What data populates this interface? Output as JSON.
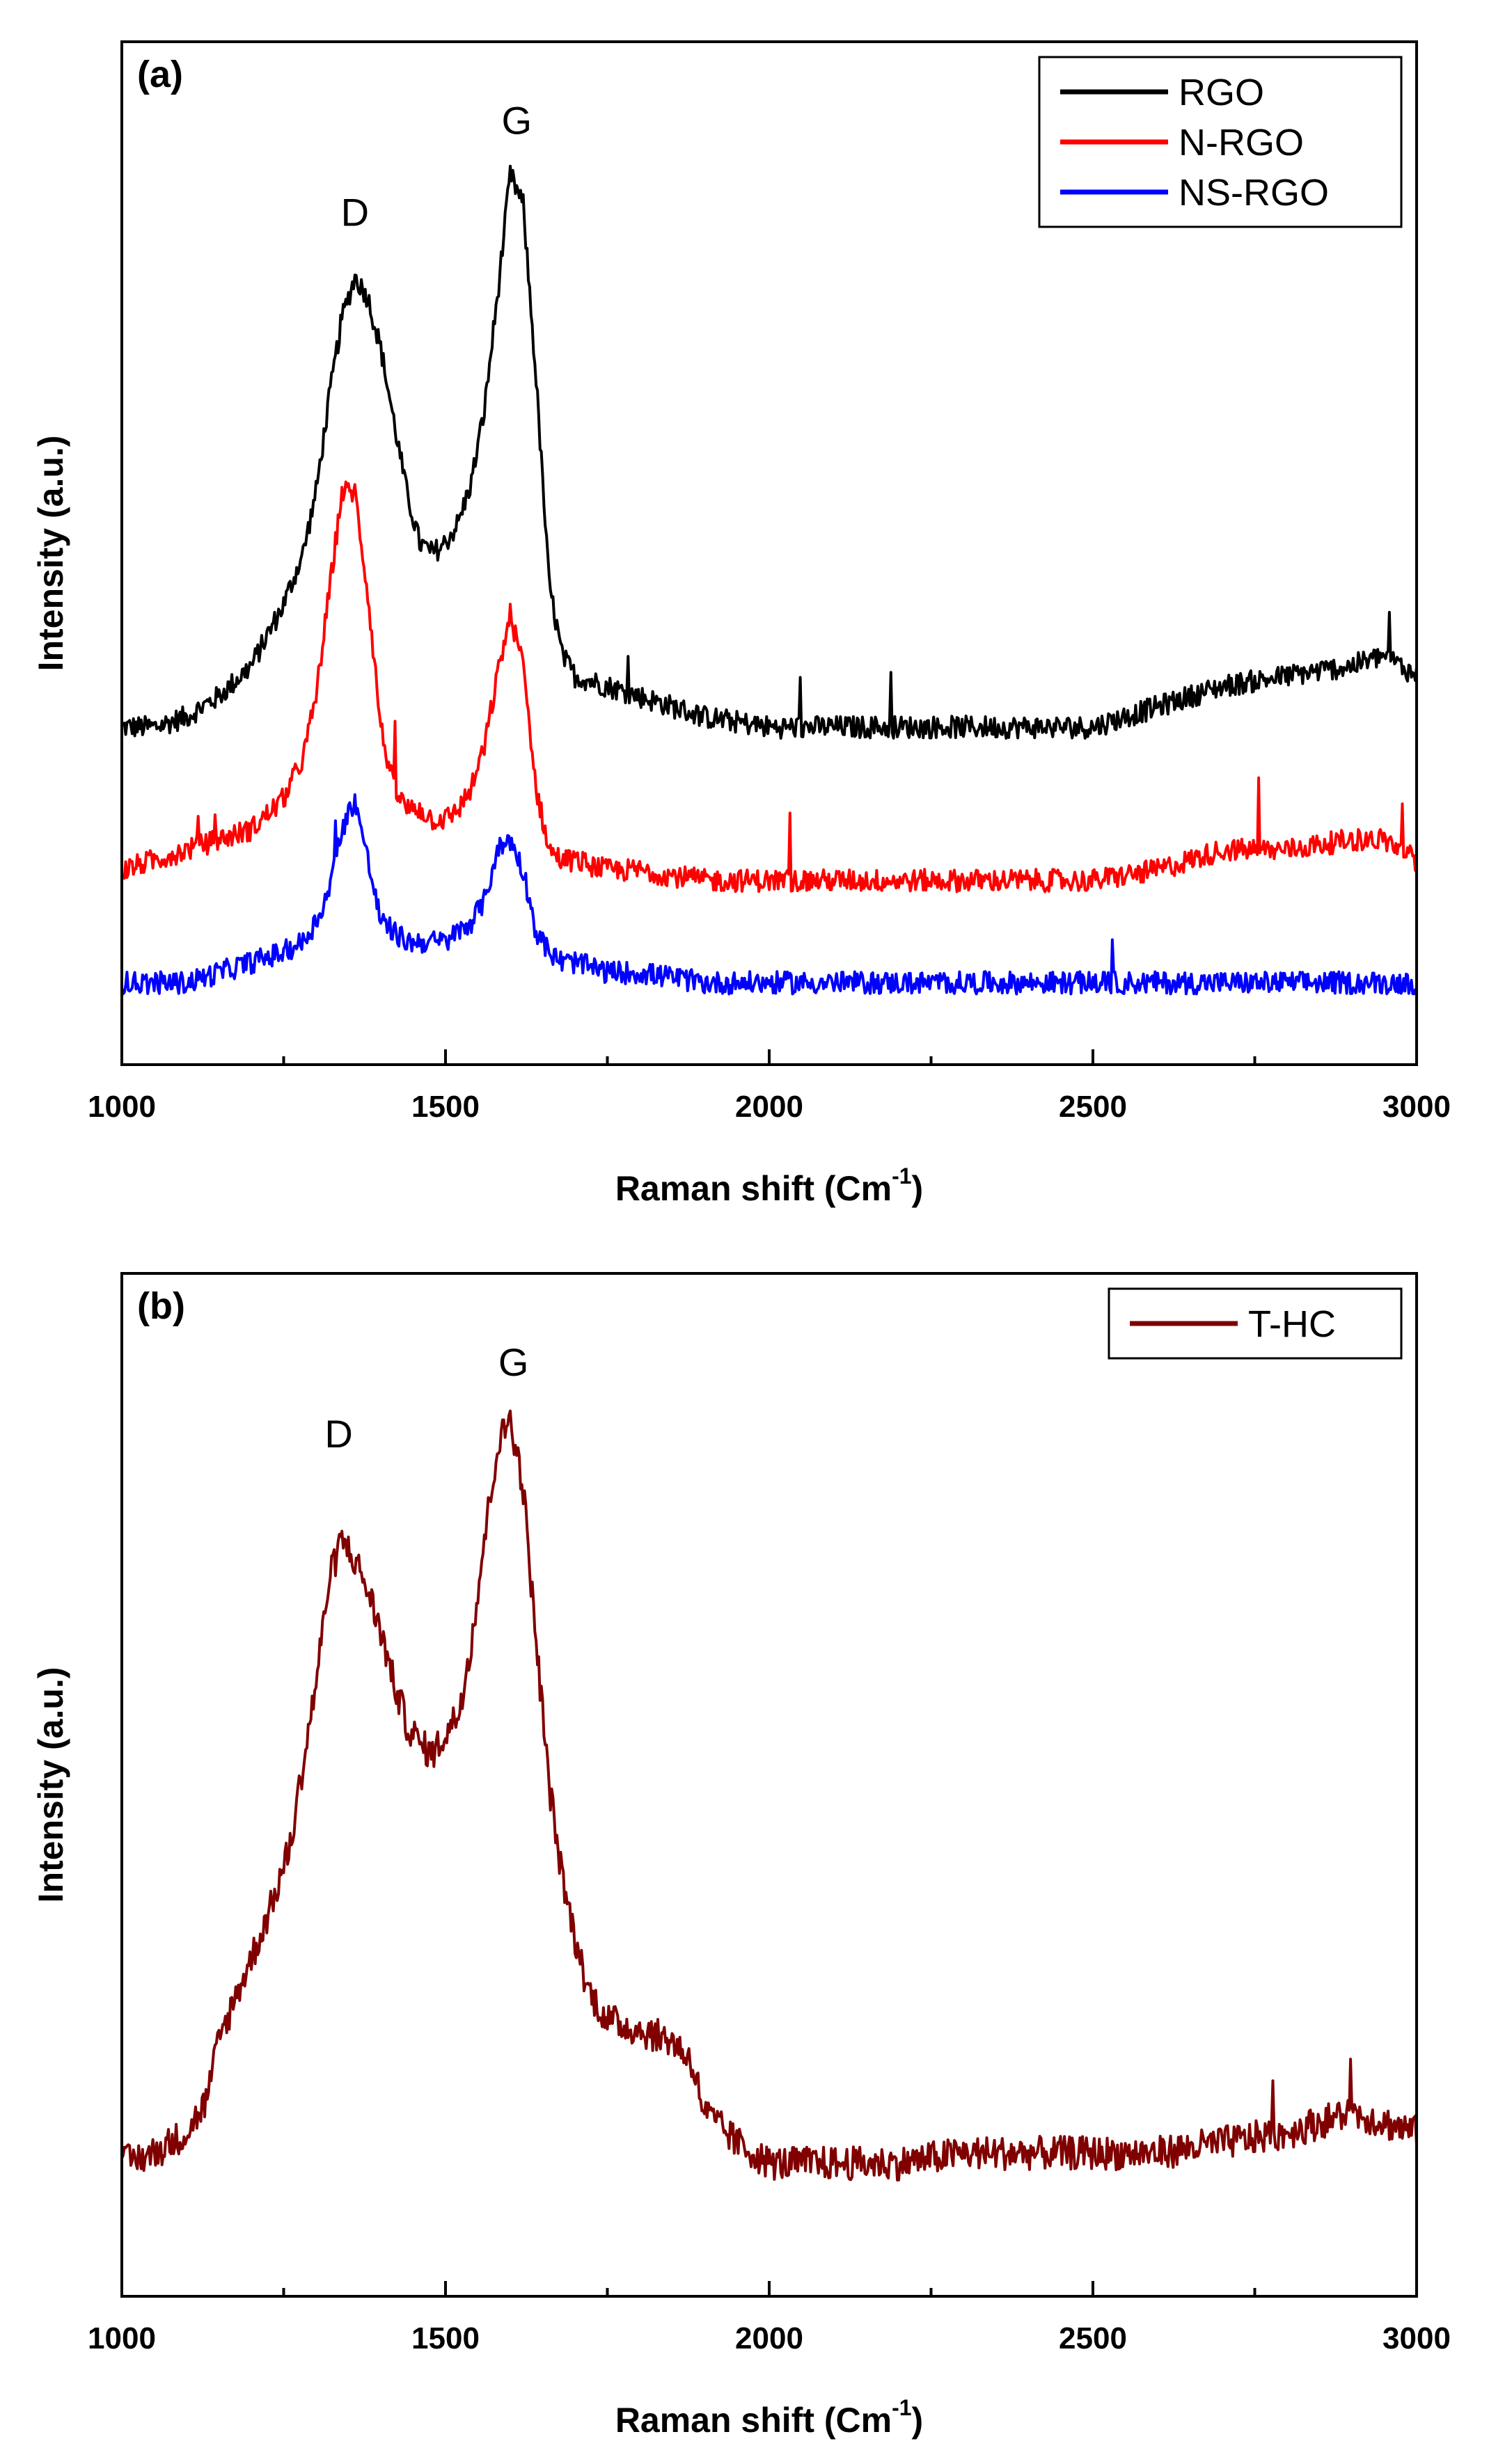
{
  "chart_data": [
    {
      "type": "line",
      "panel_label": "(a)",
      "xlabel": "Raman shift (Cm",
      "xlabel_sup": "-1",
      "xlabel_close": ")",
      "ylabel": "Intensity (a.u.)",
      "xlim": [
        1000,
        3000
      ],
      "ylim": [
        0,
        100
      ],
      "xticks": [
        1000,
        1500,
        2000,
        2500,
        3000
      ],
      "xtick_labels": [
        "1000",
        "1500",
        "2000",
        "2500",
        "3000"
      ],
      "legend_position": "top-right",
      "annotations": [
        {
          "text": "D",
          "x": 1360,
          "y": 82
        },
        {
          "text": "G",
          "x": 1610,
          "y": 91
        }
      ],
      "series": [
        {
          "name": "RGO",
          "color": "#000000",
          "x": [
            1000,
            1050,
            1100,
            1150,
            1200,
            1250,
            1280,
            1300,
            1320,
            1340,
            1360,
            1380,
            1400,
            1420,
            1440,
            1460,
            1480,
            1500,
            1520,
            1540,
            1560,
            1580,
            1600,
            1620,
            1640,
            1660,
            1680,
            1700,
            1750,
            1800,
            1900,
            2000,
            2100,
            2200,
            2300,
            2400,
            2500,
            2600,
            2700,
            2800,
            2900,
            2950,
            3000
          ],
          "y": [
            33,
            33,
            34,
            36,
            39,
            45,
            50,
            56,
            65,
            73,
            77,
            75,
            70,
            63,
            56,
            51,
            50,
            51,
            53,
            57,
            64,
            75,
            87,
            84,
            67,
            47,
            40,
            38,
            37,
            36,
            34,
            33,
            33,
            33,
            33,
            33,
            33,
            35,
            37,
            38,
            39,
            40,
            38
          ]
        },
        {
          "name": "N-RGO",
          "color": "#ff0000",
          "x": [
            1000,
            1050,
            1100,
            1150,
            1200,
            1250,
            1280,
            1300,
            1320,
            1340,
            1360,
            1380,
            1400,
            1420,
            1440,
            1460,
            1480,
            1500,
            1520,
            1540,
            1560,
            1580,
            1600,
            1620,
            1640,
            1660,
            1680,
            1700,
            1750,
            1800,
            1900,
            2000,
            2100,
            2200,
            2300,
            2400,
            2500,
            2600,
            2700,
            2800,
            2900,
            2950,
            3000
          ],
          "y": [
            19,
            20,
            21,
            22,
            23,
            26,
            30,
            36,
            46,
            56,
            56,
            46,
            33,
            27,
            25,
            25,
            24,
            24,
            25,
            27,
            31,
            38,
            44,
            39,
            27,
            21,
            20,
            20,
            19,
            19,
            18,
            18,
            18,
            18,
            18,
            18,
            18,
            19,
            21,
            21,
            22,
            22,
            20
          ]
        },
        {
          "name": "NS-RGO",
          "color": "#0000ff",
          "x": [
            1000,
            1050,
            1100,
            1150,
            1200,
            1250,
            1280,
            1300,
            1320,
            1340,
            1360,
            1380,
            1400,
            1420,
            1440,
            1460,
            1480,
            1500,
            1520,
            1540,
            1560,
            1580,
            1600,
            1620,
            1640,
            1660,
            1680,
            1700,
            1750,
            1800,
            1900,
            2000,
            2100,
            2200,
            2300,
            2400,
            2500,
            2600,
            2700,
            2800,
            2900,
            2950,
            3000
          ],
          "y": [
            8,
            8,
            8,
            9,
            10,
            11,
            12,
            14,
            17,
            23,
            26,
            20,
            14,
            13,
            12,
            12,
            12,
            12,
            13,
            14,
            16,
            21,
            22,
            19,
            13,
            11,
            10,
            10,
            9,
            9,
            8,
            8,
            8,
            8,
            8,
            8,
            8,
            8,
            8,
            8,
            8,
            8,
            8
          ]
        }
      ]
    },
    {
      "type": "line",
      "panel_label": "(b)",
      "xlabel": "Raman shift (Cm",
      "xlabel_sup": "-1",
      "xlabel_close": ")",
      "ylabel": "Intensity (a.u.)",
      "xlim": [
        1000,
        3000
      ],
      "ylim": [
        0,
        100
      ],
      "xticks": [
        1000,
        1500,
        2000,
        2500,
        3000
      ],
      "xtick_labels": [
        "1000",
        "1500",
        "2000",
        "2500",
        "3000"
      ],
      "legend_position": "top-right",
      "annotations": [
        {
          "text": "D",
          "x": 1335,
          "y": 83
        },
        {
          "text": "G",
          "x": 1605,
          "y": 90
        }
      ],
      "series": [
        {
          "name": "T-HC",
          "color": "#800000",
          "x": [
            1000,
            1050,
            1100,
            1130,
            1150,
            1180,
            1200,
            1230,
            1260,
            1280,
            1300,
            1320,
            1340,
            1360,
            1380,
            1400,
            1420,
            1440,
            1460,
            1480,
            1500,
            1520,
            1540,
            1560,
            1580,
            1600,
            1620,
            1640,
            1660,
            1680,
            1700,
            1720,
            1750,
            1800,
            1850,
            1880,
            1900,
            1950,
            2000,
            2100,
            2200,
            2300,
            2400,
            2500,
            2600,
            2700,
            2800,
            2900,
            3000
          ],
          "y": [
            13,
            14,
            16,
            19,
            25,
            30,
            33,
            38,
            44,
            52,
            60,
            70,
            74,
            72,
            69,
            65,
            60,
            56,
            54,
            53,
            55,
            57,
            64,
            74,
            83,
            86,
            79,
            64,
            50,
            41,
            35,
            30,
            27,
            26,
            25,
            23,
            18,
            15,
            13,
            13,
            13,
            14,
            14,
            14,
            14,
            15,
            16,
            18,
            16
          ]
        }
      ]
    }
  ]
}
